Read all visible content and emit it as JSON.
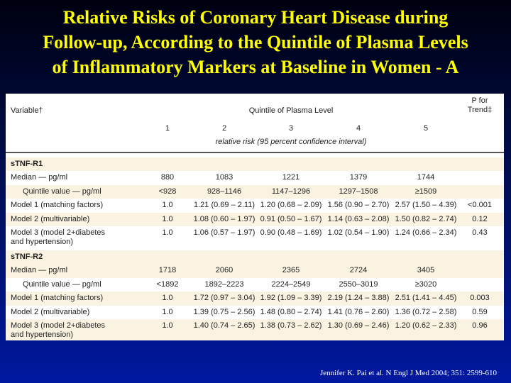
{
  "title": [
    "Relative Risks of Coronary Heart Disease during",
    "Follow-up, According to the Quintile of Plasma Levels",
    "of Inflammatory Markers at Baseline in Women - A"
  ],
  "table": {
    "header": {
      "variable": "Variable†",
      "group": "Quintile of Plasma Level",
      "p": [
        "P for",
        "Trend‡"
      ],
      "quintiles": [
        "1",
        "2",
        "3",
        "4",
        "5"
      ],
      "subheader": "relative risk (95 percent confidence interval)"
    },
    "sections": [
      {
        "name": "sTNF-R1",
        "rows": [
          {
            "label": [
              "Median — pg/ml"
            ],
            "cells": [
              "880",
              "1083",
              "1221",
              "1379",
              "1744"
            ]
          },
          {
            "label": [
              "Quintile value — pg/ml"
            ],
            "indent": true,
            "cells": [
              "<928",
              "928–1146",
              "1147–1296",
              "1297–1508",
              "≥1509"
            ]
          },
          {
            "label": [
              "Model 1 (matching factors)"
            ],
            "cells": [
              "1.0",
              "1.21 (0.69 – 2.11)",
              "1.20 (0.68 – 2.09)",
              "1.56 (0.90 – 2.70)",
              "2.57 (1.50 – 4.39)"
            ],
            "p": "<0.001"
          },
          {
            "label": [
              "Model 2 (multivariable)"
            ],
            "cells": [
              "1.0",
              "1.08 (0.60 – 1.97)",
              "0.91 (0.50 – 1.67)",
              "1.14 (0.63 – 2.08)",
              "1.50 (0.82 – 2.74)"
            ],
            "p": "0.12"
          },
          {
            "label": [
              "Model 3 (model 2+diabetes",
              "and hypertension)"
            ],
            "cells": [
              "1.0",
              "1.06 (0.57 – 1.97)",
              "0.90 (0.48 – 1.69)",
              "1.02 (0.54 – 1.90)",
              "1.24 (0.66 – 2.34)"
            ],
            "p": "0.43"
          }
        ]
      },
      {
        "name": "sTNF-R2",
        "rows": [
          {
            "label": [
              "Median — pg/ml"
            ],
            "cells": [
              "1718",
              "2060",
              "2365",
              "2724",
              "3405"
            ]
          },
          {
            "label": [
              "Quintile value — pg/ml"
            ],
            "indent": true,
            "cells": [
              "<1892",
              "1892–2223",
              "2224–2549",
              "2550–3019",
              "≥3020"
            ]
          },
          {
            "label": [
              "Model 1 (matching factors)"
            ],
            "cells": [
              "1.0",
              "1.72 (0.97 – 3.04)",
              "1.92 (1.09 – 3.39)",
              "2.19 (1.24 – 3.88)",
              "2.51 (1.41 – 4.45)"
            ],
            "p": "0.003"
          },
          {
            "label": [
              "Model 2 (multivariable)"
            ],
            "cells": [
              "1.0",
              "1.39 (0.75 – 2.56)",
              "1.48 (0.80 – 2.74)",
              "1.41 (0.76 – 2.60)",
              "1.36 (0.72 – 2.58)"
            ],
            "p": "0.59"
          },
          {
            "label": [
              "Model 3 (model 2+diabetes",
              "and hypertension)"
            ],
            "cells": [
              "1.0",
              "1.40 (0.74 – 2.65)",
              "1.38 (0.73 – 2.62)",
              "1.30 (0.69 – 2.46)",
              "1.20 (0.62 – 2.33)"
            ],
            "p": "0.96"
          }
        ]
      }
    ]
  },
  "citation": "Jennifer K. Pai et al. N Engl J Med 2004; 351: 2599-610"
}
